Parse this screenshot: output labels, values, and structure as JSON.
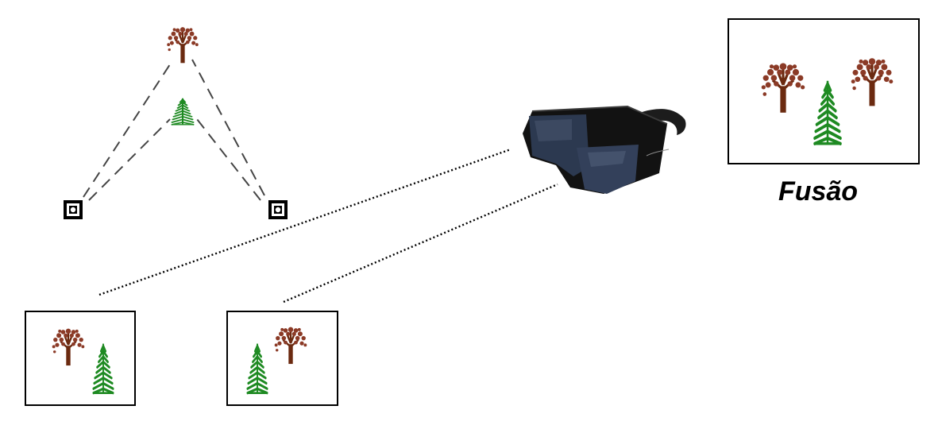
{
  "fusion_caption": "Fusão",
  "colors": {
    "tree_trunk": "#6b2a10",
    "tree_foliage": "#8b3a26",
    "pine": "#1e8a22",
    "frame": "#000000",
    "dotted_line": "#000000",
    "glasses_body": "#161616",
    "lens": "#2e3a4c"
  },
  "icons": [
    "deciduous-tree-icon",
    "pine-tree-icon",
    "camera-icon",
    "stereo-glasses-icon"
  ]
}
